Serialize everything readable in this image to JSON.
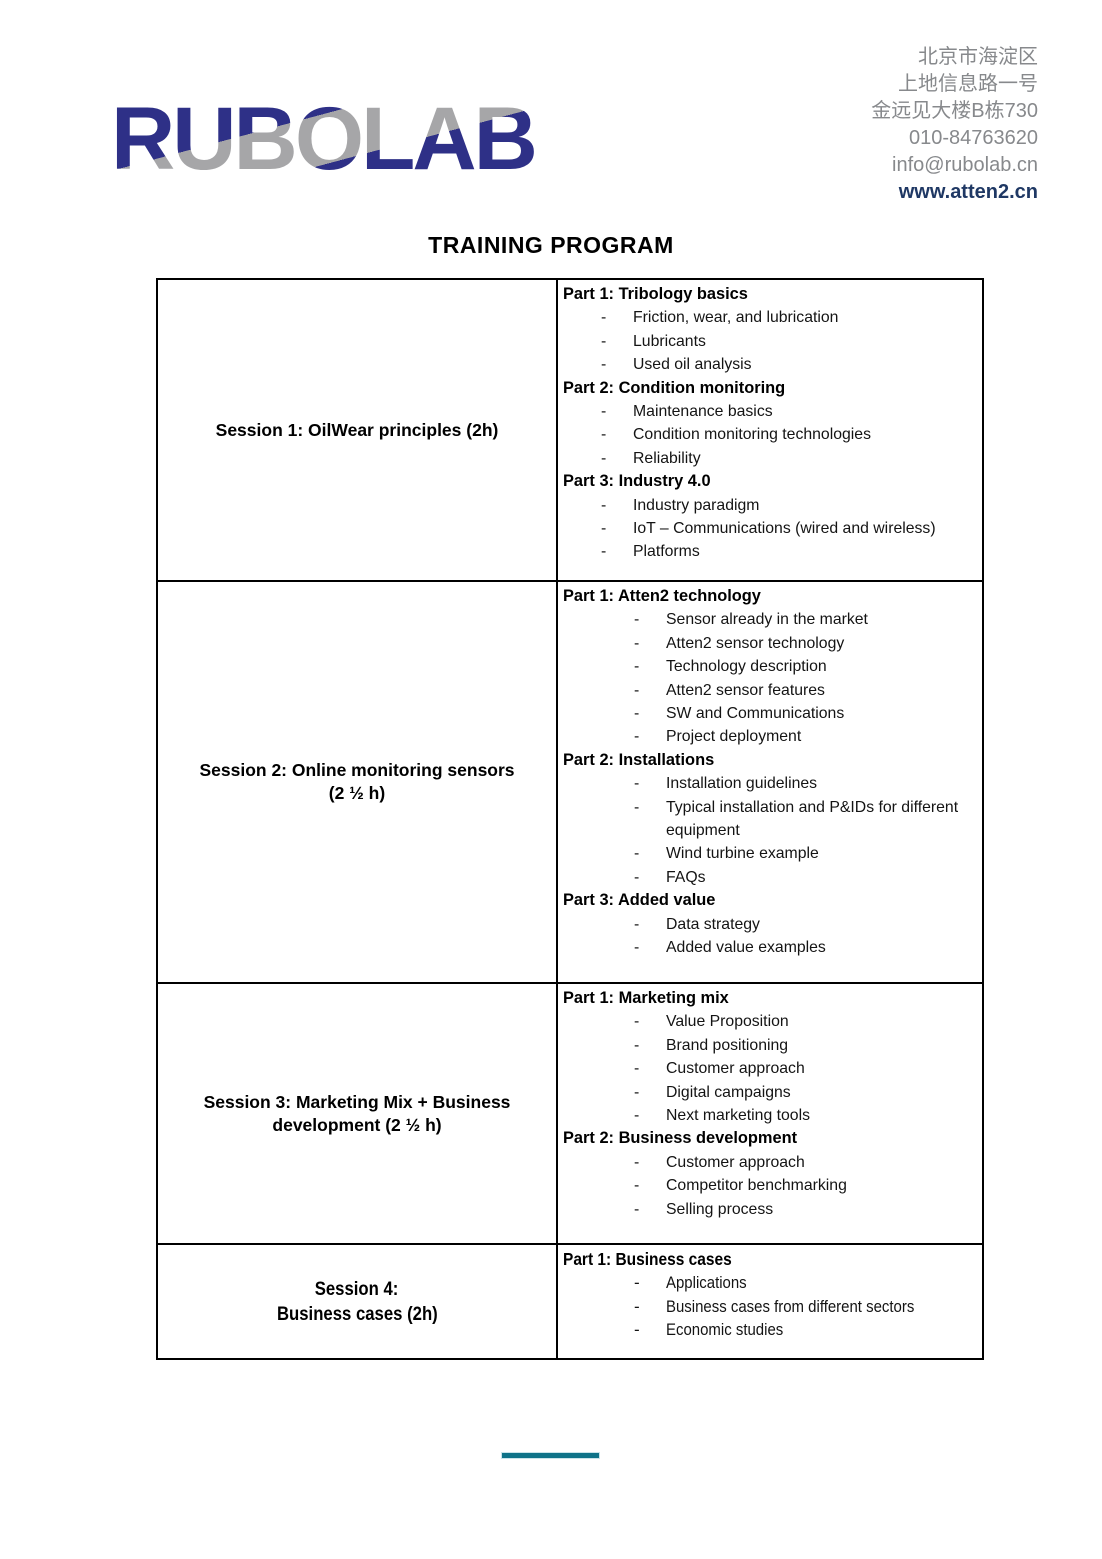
{
  "header": {
    "logo_text": "RUBOLAB",
    "address_lines": [
      "北京市海淀区",
      "上地信息路一号",
      "金远见大楼B栋730",
      "010-84763620",
      "info@rubolab.cn"
    ],
    "website": "www.atten2.cn"
  },
  "title": "TRAINING PROGRAM",
  "table": {
    "rows": [
      {
        "session_lines": [
          "Session 1: OilWear principles (2h)",
          ""
        ],
        "parts": [
          {
            "heading": "Part 1: Tribology basics",
            "items": [
              "Friction, wear, and lubrication",
              "Lubricants",
              "Used oil analysis"
            ]
          },
          {
            "heading": "Part 2: Condition monitoring",
            "items": [
              "Maintenance basics",
              "Condition monitoring technologies",
              "Reliability"
            ]
          },
          {
            "heading": "Part 3: Industry 4.0",
            "items": [
              "Industry paradigm",
              "IoT – Communications (wired and wireless)",
              "Platforms"
            ]
          }
        ]
      },
      {
        "session_lines": [
          "Session 2: Online monitoring sensors",
          "(2 ½ h)"
        ],
        "parts": [
          {
            "heading": "Part 1: Atten2 technology",
            "items": [
              "Sensor already in the market",
              "Atten2 sensor technology",
              "Technology description",
              "Atten2 sensor features",
              "SW and Communications",
              "Project deployment"
            ]
          },
          {
            "heading": "Part 2: Installations",
            "items": [
              "Installation guidelines",
              "Typical installation and P&IDs for different equipment",
              "Wind turbine example",
              "FAQs"
            ]
          },
          {
            "heading": "Part 3: Added value",
            "items": [
              "Data strategy",
              "Added value examples"
            ]
          }
        ]
      },
      {
        "session_lines": [
          "Session 3: Marketing Mix + Business",
          "development (2 ½ h)"
        ],
        "parts": [
          {
            "heading": "Part 1: Marketing mix",
            "items": [
              "Value Proposition",
              "Brand positioning",
              "Customer approach",
              "Digital campaigns",
              "Next marketing tools"
            ]
          },
          {
            "heading": "Part 2: Business development",
            "items": [
              "Customer approach",
              "Competitor benchmarking",
              "Selling process"
            ]
          }
        ]
      },
      {
        "session_lines": [
          "Session 4:",
          "Business cases (2h)"
        ],
        "parts": [
          {
            "heading": "Part 1: Business cases",
            "items": [
              "Applications",
              "Business cases from different sectors",
              "Economic studies"
            ]
          }
        ]
      }
    ]
  },
  "colors": {
    "logo_navy": "#2E3087",
    "logo_gray": "#A6A6A8",
    "contact_gray": "#87898C",
    "website_navy": "#1F3864",
    "divider_teal": "#0F7389"
  }
}
